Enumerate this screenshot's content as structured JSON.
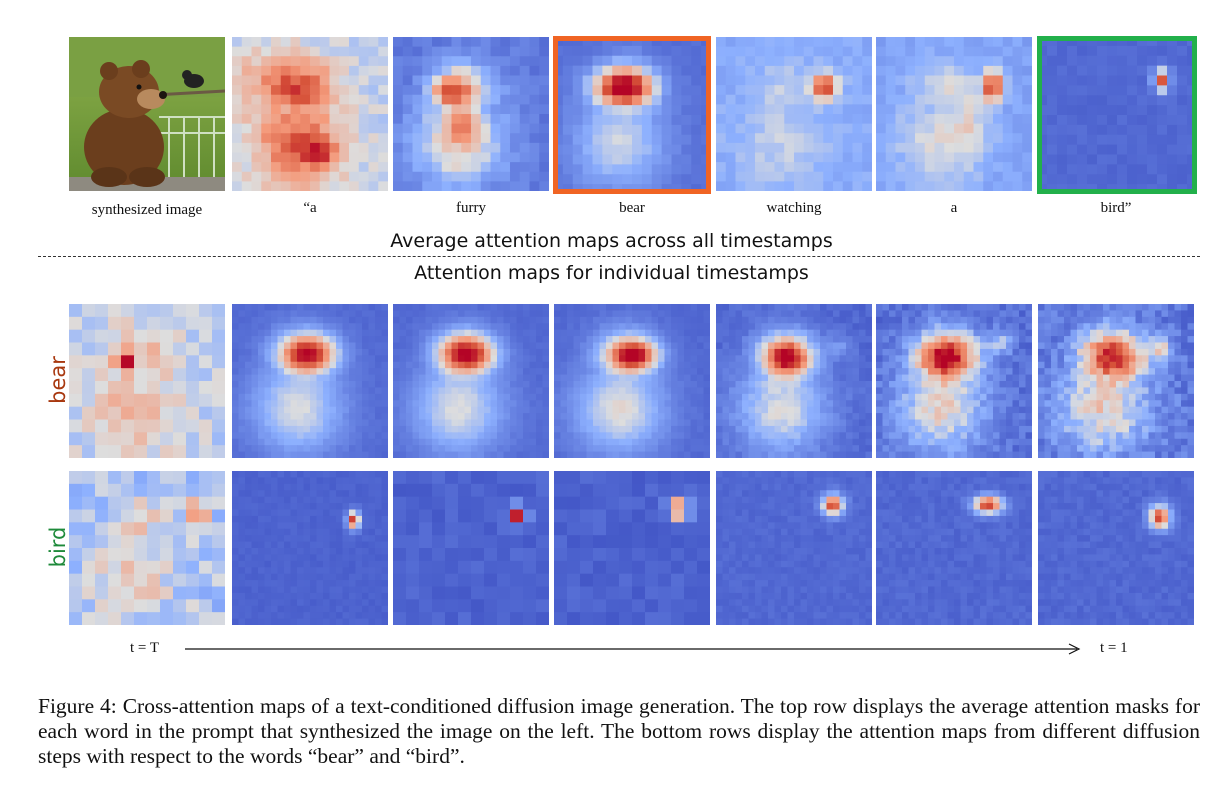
{
  "top_row": {
    "synth_label": "synthesized image",
    "words": [
      "“a",
      "furry",
      "bear",
      "watching",
      "a",
      "bird”"
    ]
  },
  "avg_heading": "Average attention maps across all timestamps",
  "ind_heading": "Attention maps for individual  timestamps",
  "rows": {
    "bear_label": "bear",
    "bird_label": "bird",
    "bear_color": "#a8380f",
    "bird_color": "#1e8a3a"
  },
  "timeline": {
    "start": "t = T",
    "end": "t = 1"
  },
  "highlight_colors": {
    "bear": "#f06424",
    "bird": "#22b04b"
  },
  "caption": "Figure 4: Cross-attention maps of a text-conditioned diffusion image generation. The top row displays the average attention masks for each word in the prompt that synthesized the image on the left. The bottom rows display the attention maps from different diffusion steps with respect to the words “bear” and “bird”."
}
